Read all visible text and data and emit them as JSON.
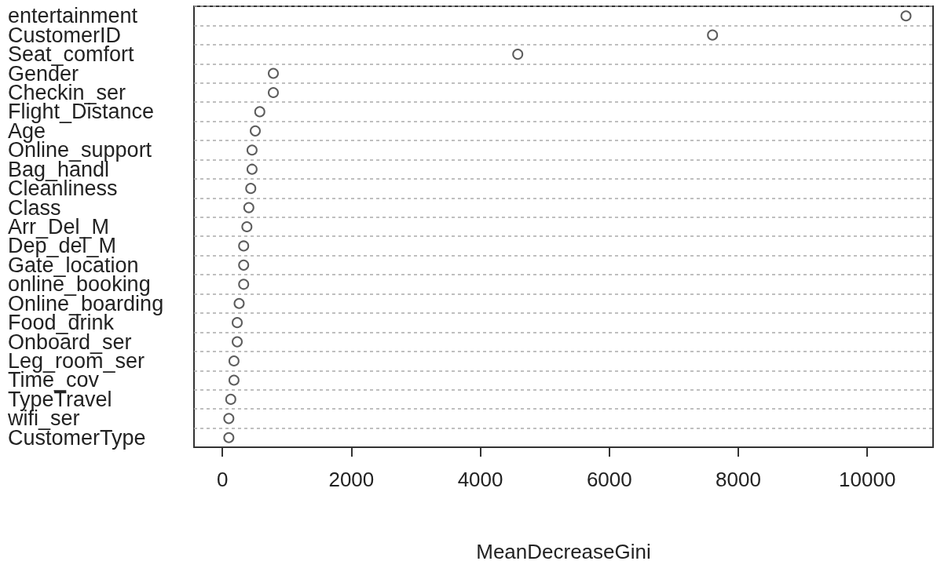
{
  "chart_data": {
    "type": "scatter",
    "orientation": "horizontal",
    "xlabel": "MeanDecreaseGini",
    "categories": [
      "entertainment",
      "CustomerID",
      "Seat_comfort",
      "Gender",
      "Checkin_ser",
      "Flight_Distance",
      "Age",
      "Online_support",
      "Bag_handl",
      "Cleanliness",
      "Class",
      "Arr_Del_M",
      "Dep_del_M",
      "Gate_location",
      "online_booking",
      "Online_boarding",
      "Food_drink",
      "Onboard_ser",
      "Leg_room_ser",
      "Time_cov",
      "TypeTravel",
      "wifi_ser",
      "CustomerType"
    ],
    "values": [
      10600,
      7600,
      4580,
      790,
      790,
      580,
      510,
      460,
      460,
      440,
      410,
      380,
      330,
      330,
      330,
      260,
      230,
      230,
      180,
      180,
      130,
      100,
      100
    ],
    "color": "#333333",
    "marker": "circle",
    "xlim": [
      -440,
      11020
    ],
    "xticks": [
      0,
      2000,
      4000,
      6000,
      8000,
      10000
    ],
    "grid": "y"
  }
}
